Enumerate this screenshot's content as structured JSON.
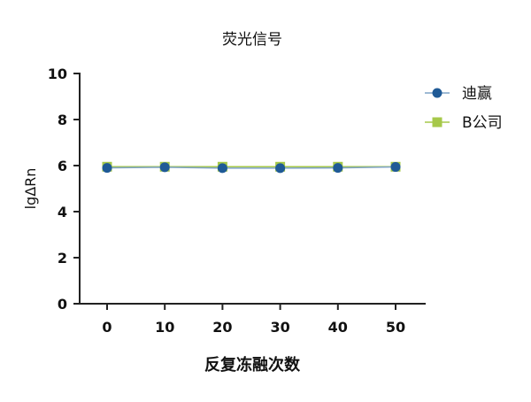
{
  "chart_data": {
    "type": "line",
    "title": "荧光信号",
    "xlabel": "反复冻融次数",
    "ylabel": "lgΔRn",
    "x": [
      0,
      10,
      20,
      30,
      40,
      50
    ],
    "xticks": [
      0,
      10,
      20,
      30,
      40,
      50
    ],
    "yticks": [
      0,
      2,
      4,
      6,
      8,
      10
    ],
    "ylim": [
      0,
      10
    ],
    "grid": false,
    "legend_position": "right",
    "series": [
      {
        "name": "迪赢",
        "values": [
          5.9,
          5.93,
          5.89,
          5.89,
          5.9,
          5.94
        ],
        "marker": "circle",
        "color": "#1f5a96",
        "line_color": "#7fa3c6"
      },
      {
        "name": "B公司",
        "values": [
          5.95,
          5.95,
          5.95,
          5.95,
          5.95,
          5.95
        ],
        "marker": "square",
        "color": "#a6c84a",
        "line_color": "#a6c84a"
      }
    ]
  }
}
